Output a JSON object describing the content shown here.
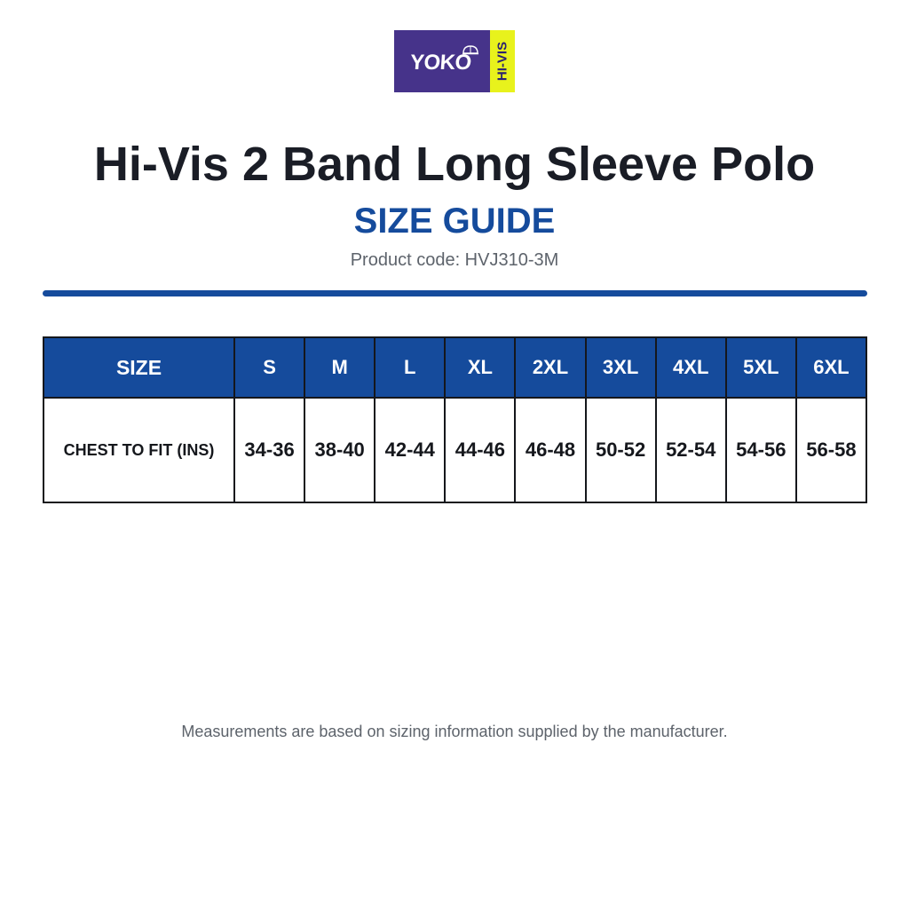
{
  "logo": {
    "brand": "YOKO",
    "tag": "HI-VIS",
    "colors": {
      "left": "#46338a",
      "right": "#e8f21c"
    }
  },
  "title": "Hi-Vis 2 Band Long Sleeve Polo",
  "subtitle": "SIZE GUIDE",
  "product_code": "Product code: HVJ310-3M",
  "accent_color": "#154b9c",
  "table": {
    "header_label": "SIZE",
    "sizes": [
      "S",
      "M",
      "L",
      "XL",
      "2XL",
      "3XL",
      "4XL",
      "5XL",
      "6XL"
    ],
    "rows": [
      {
        "label": "CHEST TO FIT (INS)",
        "values": [
          "34-36",
          "38-40",
          "42-44",
          "44-46",
          "46-48",
          "50-52",
          "52-54",
          "54-56",
          "56-58"
        ]
      }
    ]
  },
  "footnote": "Measurements are based on sizing information supplied by the manufacturer."
}
